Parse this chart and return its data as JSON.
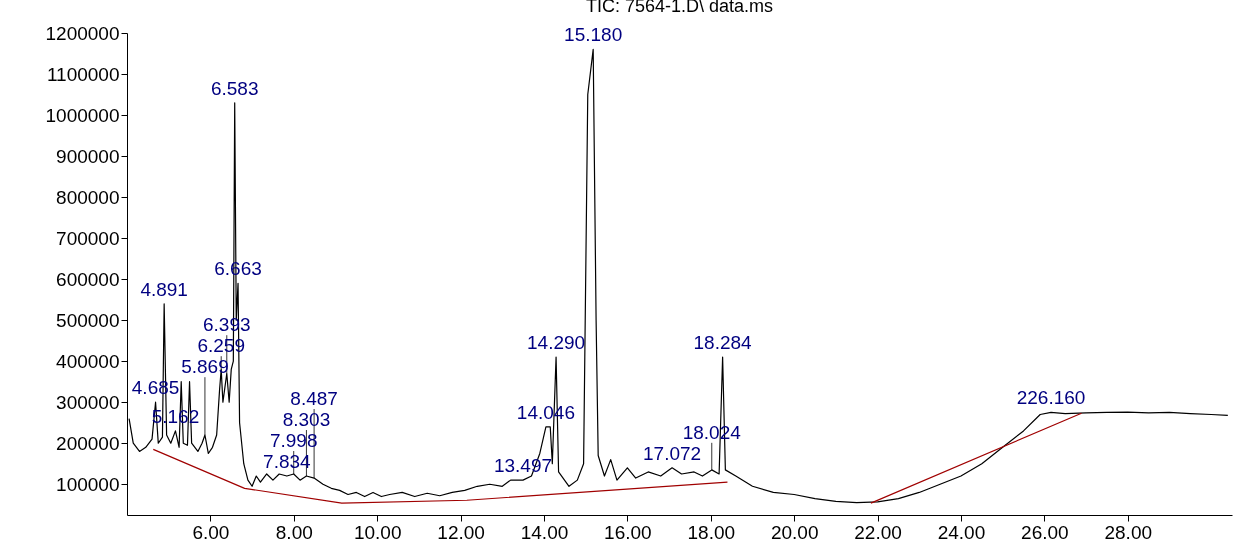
{
  "chart_data": {
    "type": "line",
    "title": "TIC: 7564-1.D\\ data.ms",
    "xlim": [
      4.0,
      30.5
    ],
    "ylim": [
      25000,
      1200000
    ],
    "xticks": [
      {
        "value": 6,
        "label": "6.00"
      },
      {
        "value": 8,
        "label": "8.00"
      },
      {
        "value": 10,
        "label": "10.00"
      },
      {
        "value": 12,
        "label": "12.00"
      },
      {
        "value": 14,
        "label": "14.00"
      },
      {
        "value": 16,
        "label": "16.00"
      },
      {
        "value": 18,
        "label": "18.00"
      },
      {
        "value": 20,
        "label": "20.00"
      },
      {
        "value": 22,
        "label": "22.00"
      },
      {
        "value": 24,
        "label": "24.00"
      },
      {
        "value": 26,
        "label": "26.00"
      },
      {
        "value": 28,
        "label": "28.00"
      }
    ],
    "yticks": [
      100000,
      200000,
      300000,
      400000,
      500000,
      600000,
      700000,
      800000,
      900000,
      1000000,
      1100000,
      1200000
    ],
    "grid": false,
    "marker": "none",
    "line_style": "solid",
    "series": [
      {
        "color": "#000000",
        "x": [
          4.05,
          4.15,
          4.3,
          4.45,
          4.6,
          4.685,
          4.75,
          4.85,
          4.891,
          4.95,
          5.05,
          5.162,
          5.25,
          5.3,
          5.35,
          5.45,
          5.5,
          5.55,
          5.7,
          5.8,
          5.869,
          5.95,
          6.05,
          6.15,
          6.22,
          6.259,
          6.3,
          6.393,
          6.45,
          6.5,
          6.55,
          6.583,
          6.62,
          6.663,
          6.7,
          6.8,
          6.9,
          7.0,
          7.1,
          7.2,
          7.35,
          7.5,
          7.65,
          7.834,
          7.998,
          8.15,
          8.303,
          8.487,
          8.7,
          8.9,
          9.1,
          9.3,
          9.5,
          9.7,
          9.9,
          10.1,
          10.3,
          10.6,
          10.9,
          11.2,
          11.5,
          11.8,
          12.1,
          12.4,
          12.7,
          13.0,
          13.2,
          13.497,
          13.7,
          13.9,
          14.046,
          14.15,
          14.2,
          14.29,
          14.35,
          14.6,
          14.8,
          14.95,
          15.05,
          15.18,
          15.25,
          15.3,
          15.45,
          15.6,
          15.75,
          16.0,
          16.2,
          16.5,
          16.8,
          17.072,
          17.3,
          17.6,
          17.8,
          18.024,
          18.2,
          18.284,
          18.35,
          18.6,
          19.0,
          19.5,
          20.0,
          20.5,
          21.0,
          21.5,
          22.0,
          22.5,
          23.0,
          23.5,
          24.0,
          24.5,
          25.0,
          25.5,
          25.9,
          26.16,
          26.5,
          27.0,
          27.5,
          28.0,
          28.5,
          29.0,
          29.5,
          30.0,
          30.4
        ],
        "values": [
          260000,
          200000,
          180000,
          190000,
          210000,
          300000,
          200000,
          215000,
          540000,
          220000,
          200000,
          230000,
          190000,
          350000,
          200000,
          195000,
          350000,
          200000,
          180000,
          200000,
          220000,
          175000,
          190000,
          220000,
          330000,
          380000,
          300000,
          370000,
          300000,
          380000,
          400000,
          1030000,
          500000,
          590000,
          250000,
          150000,
          110000,
          95000,
          120000,
          105000,
          125000,
          110000,
          125000,
          120000,
          125000,
          110000,
          120000,
          115000,
          100000,
          90000,
          85000,
          75000,
          80000,
          70000,
          80000,
          70000,
          75000,
          80000,
          70000,
          78000,
          72000,
          80000,
          85000,
          95000,
          100000,
          95000,
          110000,
          110000,
          120000,
          175000,
          240000,
          240000,
          150000,
          410000,
          130000,
          95000,
          110000,
          150000,
          1050000,
          1160000,
          500000,
          170000,
          120000,
          160000,
          110000,
          140000,
          115000,
          130000,
          120000,
          140000,
          125000,
          130000,
          120000,
          135000,
          125000,
          410000,
          135000,
          120000,
          95000,
          80000,
          75000,
          65000,
          58000,
          55000,
          57000,
          65000,
          80000,
          100000,
          120000,
          150000,
          190000,
          230000,
          270000,
          275000,
          272000,
          274000,
          275000,
          276000,
          274000,
          275000,
          272000,
          270000,
          268000
        ]
      },
      {
        "color": "#a00000",
        "x": [
          4.63,
          6.82,
          9.15,
          12.15,
          18.4,
          20.0,
          21.84,
          26.89
        ],
        "values": [
          185000,
          90000,
          54000,
          61000,
          105000,
          null,
          54000,
          273000
        ]
      }
    ],
    "annotations": [
      {
        "text": "4.685",
        "x": 4.685,
        "y": 300000
      },
      {
        "text": "4.891",
        "x": 4.891,
        "y": 540000
      },
      {
        "text": "5.162",
        "x": 5.162,
        "y": 230000
      },
      {
        "text": "5.869",
        "x": 5.869,
        "y": 220000
      },
      {
        "text": "6.259",
        "x": 6.259,
        "y": 380000
      },
      {
        "text": "6.393",
        "x": 6.393,
        "y": 370000
      },
      {
        "text": "6.583",
        "x": 6.583,
        "y": 1030000
      },
      {
        "text": "6.663",
        "x": 6.663,
        "y": 590000
      },
      {
        "text": "7.834",
        "x": 7.834,
        "y": 120000
      },
      {
        "text": "7.998",
        "x": 7.998,
        "y": 125000
      },
      {
        "text": "8.303",
        "x": 8.303,
        "y": 120000
      },
      {
        "text": "8.487",
        "x": 8.487,
        "y": 115000
      },
      {
        "text": "13.497",
        "x": 13.497,
        "y": 110000
      },
      {
        "text": "14.046",
        "x": 14.046,
        "y": 240000
      },
      {
        "text": "14.290",
        "x": 14.29,
        "y": 410000
      },
      {
        "text": "15.180",
        "x": 15.18,
        "y": 1160000
      },
      {
        "text": "17.072",
        "x": 17.072,
        "y": 140000
      },
      {
        "text": "18.024",
        "x": 18.024,
        "y": 135000
      },
      {
        "text": "18.284",
        "x": 18.284,
        "y": 410000
      },
      {
        "text": "226.160",
        "x": 26.16,
        "y": 275000
      }
    ]
  }
}
